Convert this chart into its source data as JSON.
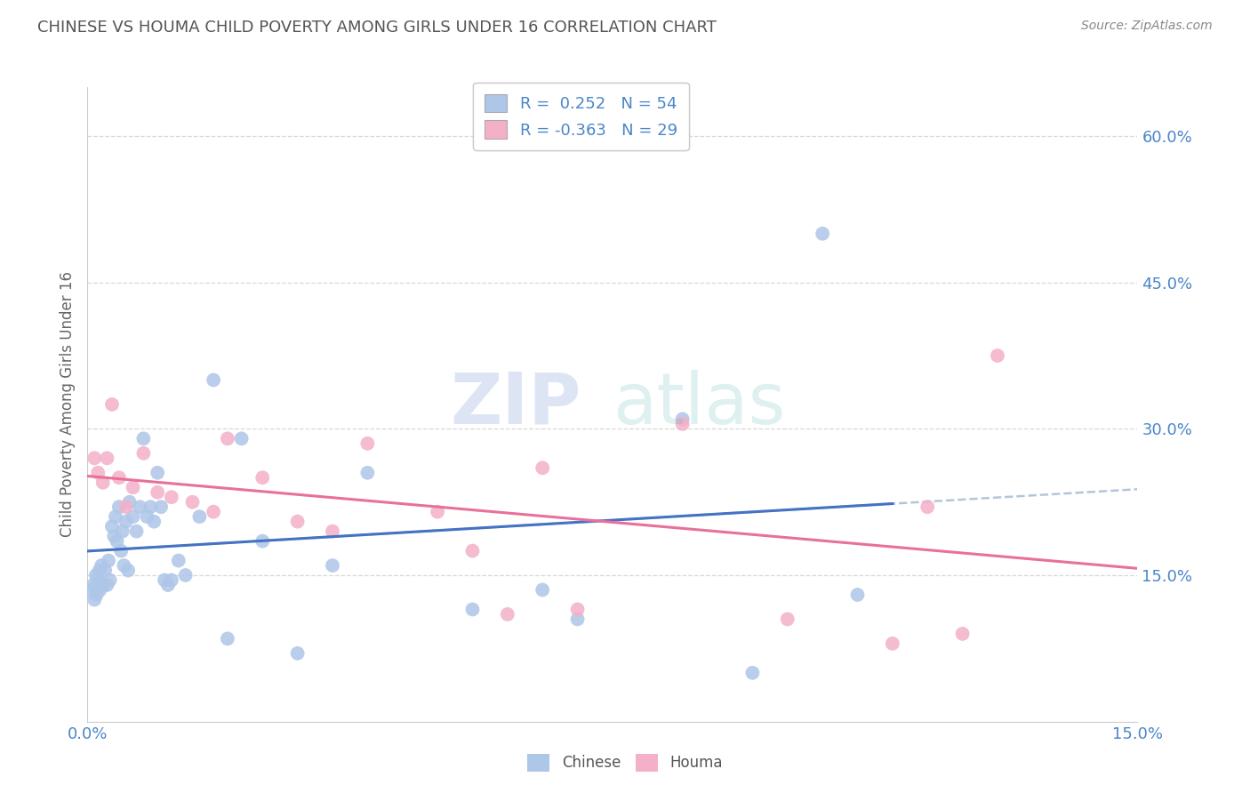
{
  "title": "CHINESE VS HOUMA CHILD POVERTY AMONG GIRLS UNDER 16 CORRELATION CHART",
  "source_text": "Source: ZipAtlas.com",
  "ylabel": "Child Poverty Among Girls Under 16",
  "xlim": [
    0.0,
    15.0
  ],
  "ylim": [
    0.0,
    65.0
  ],
  "xticks": [
    0.0,
    15.0
  ],
  "xtick_labels": [
    "0.0%",
    "15.0%"
  ],
  "ytick_right_vals": [
    15.0,
    30.0,
    45.0,
    60.0
  ],
  "ytick_right_labels": [
    "15.0%",
    "30.0%",
    "45.0%",
    "60.0%"
  ],
  "watermark_zip": "ZIP",
  "watermark_atlas": "atlas",
  "legend_entries": [
    {
      "label": "R =  0.252   N = 54",
      "color": "#aec6e8"
    },
    {
      "label": "R = -0.363   N = 29",
      "color": "#f4b0c8"
    }
  ],
  "bottom_legend_labels": [
    "Chinese",
    "Houma"
  ],
  "chinese_color": "#aec6e8",
  "houma_color": "#f4b0c8",
  "chinese_line_color": "#4472c4",
  "houma_line_color": "#e8709a",
  "dashed_line_color": "#a0b8d0",
  "grid_color": "#d8d8d8",
  "title_color": "#555555",
  "axis_color": "#4a86c8",
  "tick_label_color": "#4a86c8",
  "chinese_x": [
    0.05,
    0.08,
    0.1,
    0.12,
    0.13,
    0.15,
    0.17,
    0.18,
    0.2,
    0.22,
    0.25,
    0.28,
    0.3,
    0.32,
    0.35,
    0.38,
    0.4,
    0.42,
    0.45,
    0.48,
    0.5,
    0.52,
    0.55,
    0.58,
    0.6,
    0.65,
    0.7,
    0.75,
    0.8,
    0.85,
    0.9,
    0.95,
    1.0,
    1.05,
    1.1,
    1.15,
    1.2,
    1.3,
    1.4,
    1.6,
    1.8,
    2.0,
    2.2,
    2.5,
    3.0,
    3.5,
    4.0,
    5.5,
    6.5,
    7.0,
    8.5,
    9.5,
    10.5,
    11.0
  ],
  "chinese_y": [
    13.5,
    14.0,
    12.5,
    15.0,
    13.0,
    14.5,
    15.5,
    13.5,
    16.0,
    14.0,
    15.5,
    14.0,
    16.5,
    14.5,
    20.0,
    19.0,
    21.0,
    18.5,
    22.0,
    17.5,
    19.5,
    16.0,
    20.5,
    15.5,
    22.5,
    21.0,
    19.5,
    22.0,
    29.0,
    21.0,
    22.0,
    20.5,
    25.5,
    22.0,
    14.5,
    14.0,
    14.5,
    16.5,
    15.0,
    21.0,
    35.0,
    8.5,
    29.0,
    18.5,
    7.0,
    16.0,
    25.5,
    11.5,
    13.5,
    10.5,
    31.0,
    5.0,
    50.0,
    13.0
  ],
  "houma_x": [
    0.1,
    0.15,
    0.22,
    0.28,
    0.35,
    0.45,
    0.55,
    0.65,
    0.8,
    1.0,
    1.2,
    1.5,
    1.8,
    2.0,
    2.5,
    3.0,
    3.5,
    4.0,
    5.0,
    5.5,
    6.0,
    6.5,
    7.0,
    8.5,
    10.0,
    11.5,
    12.0,
    12.5,
    13.0
  ],
  "houma_y": [
    27.0,
    25.5,
    24.5,
    27.0,
    32.5,
    25.0,
    22.0,
    24.0,
    27.5,
    23.5,
    23.0,
    22.5,
    21.5,
    29.0,
    25.0,
    20.5,
    19.5,
    28.5,
    21.5,
    17.5,
    11.0,
    26.0,
    11.5,
    30.5,
    10.5,
    8.0,
    22.0,
    9.0,
    37.5
  ]
}
